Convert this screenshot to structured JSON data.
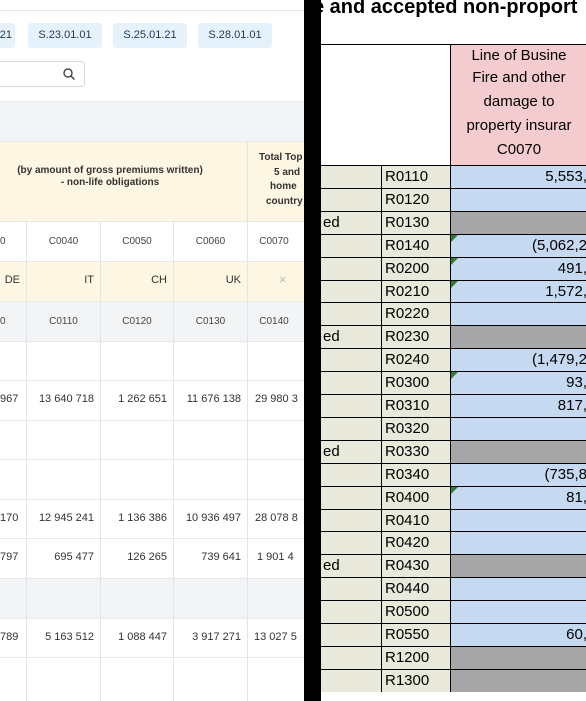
{
  "tabs": [
    "21",
    "S.23.01.01",
    "S.25.01.21",
    "S.28.01.01"
  ],
  "header": {
    "group_title_line1": "(by amount of gross premiums written)",
    "group_title_line2": "- non-life obligations",
    "total_line1": "Total Top",
    "total_line2": "5 and",
    "total_line3": "home",
    "total_line4": "country"
  },
  "col_codes_row1": [
    "0",
    "C0040",
    "C0050",
    "C0060",
    "C0070"
  ],
  "countries": [
    "DE",
    "IT",
    "CH",
    "UK"
  ],
  "country_empty_icon": "×",
  "col_codes_row2": [
    "0",
    "C0110",
    "C0120",
    "C0130",
    "C0140"
  ],
  "rows": [
    [
      "967",
      "13 640 718",
      "1 262 651",
      "11 676 138",
      "29 980 3"
    ],
    [
      "170",
      "12 945 241",
      "1 136 386",
      "10 936 497",
      "28 078 8"
    ],
    [
      "797",
      "695 477",
      "126 265",
      "739 641",
      "1 901 4"
    ],
    [
      "789",
      "5 163 512",
      "1 088 447",
      "3 917 271",
      "13 027 5"
    ]
  ],
  "excel": {
    "title": "e and accepted non-proport",
    "header_lines": [
      "Line of Busine",
      "Fire and other",
      "damage to",
      "property insurar",
      "C0070"
    ],
    "rows": [
      {
        "label": "",
        "code": "R0110",
        "value": "5,553,",
        "type": "blue"
      },
      {
        "label": "",
        "code": "R0120",
        "value": "",
        "type": "blue"
      },
      {
        "label": "ed",
        "code": "R0130",
        "value": "",
        "type": "gray"
      },
      {
        "label": "",
        "code": "R0140",
        "value": "(5,062,2",
        "type": "blue"
      },
      {
        "label": "",
        "code": "R0200",
        "value": "491,",
        "type": "blue"
      },
      {
        "label": "",
        "code": "R0210",
        "value": "1,572,",
        "type": "blue"
      },
      {
        "label": "",
        "code": "R0220",
        "value": "",
        "type": "blue"
      },
      {
        "label": "ed",
        "code": "R0230",
        "value": "",
        "type": "gray"
      },
      {
        "label": "",
        "code": "R0240",
        "value": "(1,479,2",
        "type": "blue"
      },
      {
        "label": "",
        "code": "R0300",
        "value": "93,",
        "type": "blue"
      },
      {
        "label": "",
        "code": "R0310",
        "value": "817,",
        "type": "blue"
      },
      {
        "label": "",
        "code": "R0320",
        "value": "",
        "type": "blue"
      },
      {
        "label": "ed",
        "code": "R0330",
        "value": "",
        "type": "gray"
      },
      {
        "label": "",
        "code": "R0340",
        "value": "(735,8",
        "type": "blue"
      },
      {
        "label": "",
        "code": "R0400",
        "value": "81,",
        "type": "blue"
      },
      {
        "label": "",
        "code": "R0410",
        "value": "",
        "type": "blue"
      },
      {
        "label": "",
        "code": "R0420",
        "value": "",
        "type": "blue"
      },
      {
        "label": "ed",
        "code": "R0430",
        "value": "",
        "type": "gray"
      },
      {
        "label": "",
        "code": "R0440",
        "value": "",
        "type": "blue"
      },
      {
        "label": "",
        "code": "R0500",
        "value": "",
        "type": "blue"
      },
      {
        "label": "",
        "code": "R0550",
        "value": "60,",
        "type": "blue"
      },
      {
        "label": "",
        "code": "R1200",
        "value": "",
        "type": "gray"
      },
      {
        "label": "",
        "code": "R1300",
        "value": "",
        "type": "gray"
      }
    ]
  },
  "colors": {
    "tab_bg": "#e6f2fb",
    "header_bg": "#fdf6e3",
    "excel_pink": "#f4ccd0",
    "excel_blue": "#c5d9f1",
    "excel_gray": "#a6a6a6",
    "excel_label_bg": "#e8e8db"
  }
}
